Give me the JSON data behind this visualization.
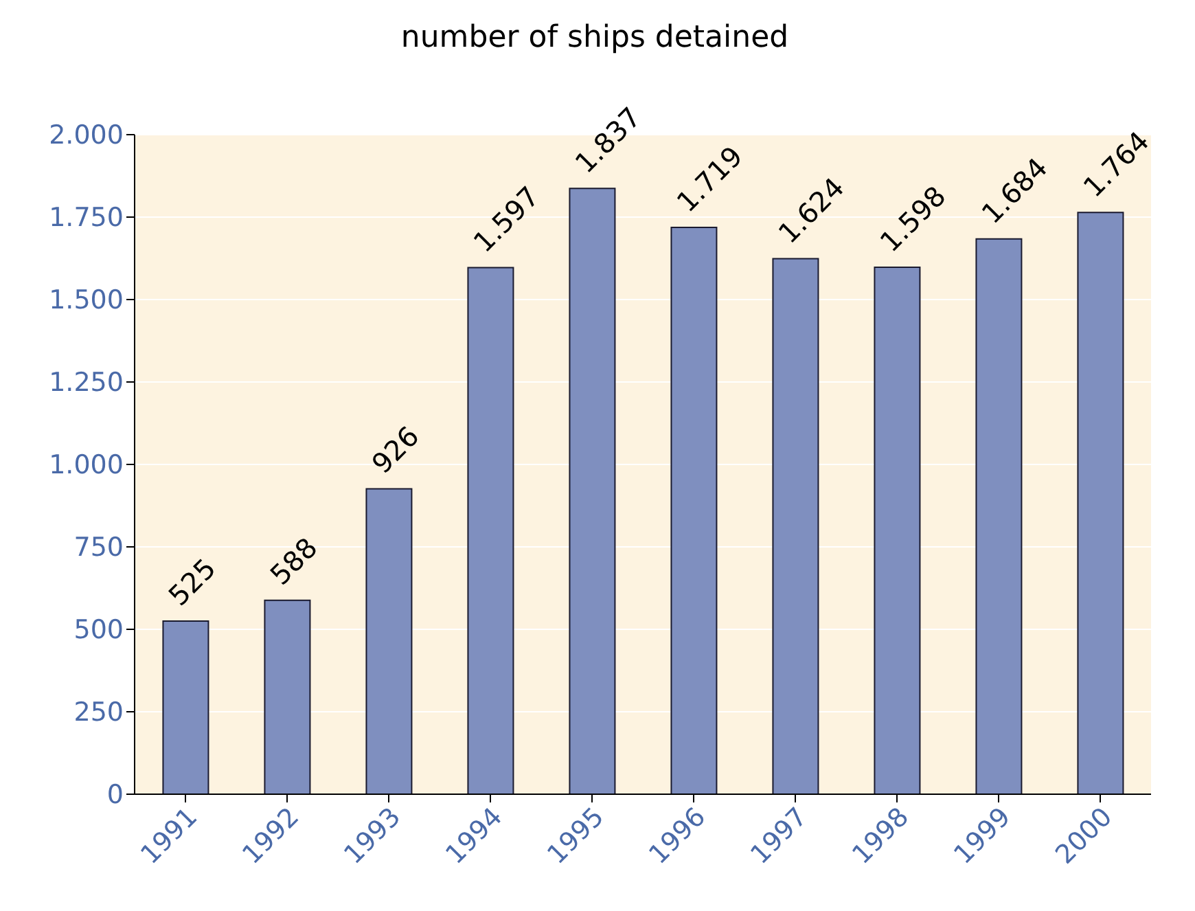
{
  "chart_data": {
    "type": "bar",
    "title": "number of ships detained",
    "categories": [
      "1991",
      "1992",
      "1993",
      "1994",
      "1995",
      "1996",
      "1997",
      "1998",
      "1999",
      "2000"
    ],
    "values": [
      525,
      588,
      926,
      1597,
      1837,
      1719,
      1624,
      1598,
      1684,
      1764
    ],
    "value_labels": [
      "525",
      "588",
      "926",
      "1.597",
      "1.837",
      "1.719",
      "1.624",
      "1.598",
      "1.684",
      "1.764"
    ],
    "color": "#7f8fbf",
    "ylim": [
      0,
      2000
    ],
    "yticks": [
      {
        "value": 0,
        "label": "0"
      },
      {
        "value": 250,
        "label": "250"
      },
      {
        "value": 500,
        "label": "500"
      },
      {
        "value": 750,
        "label": "750"
      },
      {
        "value": 1000,
        "label": "1.000"
      },
      {
        "value": 1250,
        "label": "1.250"
      },
      {
        "value": 1500,
        "label": "1.500"
      },
      {
        "value": 1750,
        "label": "1.750"
      },
      {
        "value": 2000,
        "label": "2.000"
      }
    ],
    "grid": "y"
  }
}
